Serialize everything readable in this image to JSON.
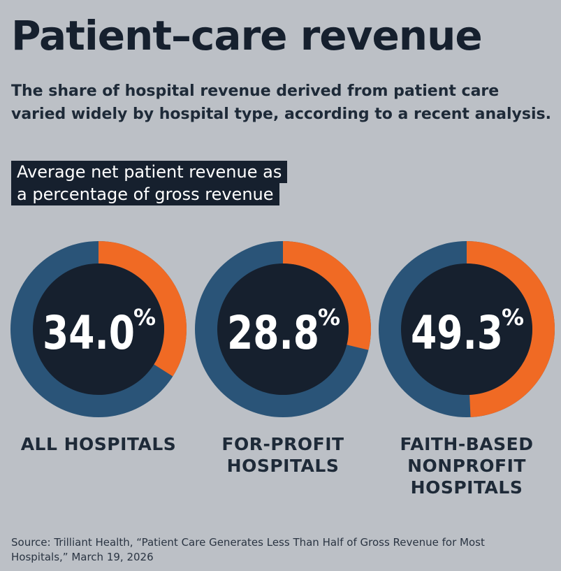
{
  "title": "Patient–care revenue",
  "subtitle": "The share of hospital revenue derived from patient care varied widely by hospital type, according to a recent analysis.",
  "chart_label": "Average net patient revenue as a percentage of gross revenue",
  "source": "Source: Trilliant Health, “Patient Care Generates Less Than Half of Gross Revenue for Most Hospitals,” March 19, 2026",
  "colors": {
    "background": "#bcc0c6",
    "ring_base": "#2a5478",
    "ring_value": "#f06a24",
    "inner": "#16202e",
    "text_dark": "#16202e"
  },
  "chart_data": [
    {
      "type": "pie",
      "category": "ALL HOSPITALS",
      "value": 34.0,
      "value_label": "34.0",
      "unit": "%"
    },
    {
      "type": "pie",
      "category": "FOR-PROFIT HOSPITALS",
      "value": 28.8,
      "value_label": "28.8",
      "unit": "%"
    },
    {
      "type": "pie",
      "category": "FAITH-BASED NONPROFIT HOSPITALS",
      "value": 49.3,
      "value_label": "49.3",
      "unit": "%"
    }
  ]
}
